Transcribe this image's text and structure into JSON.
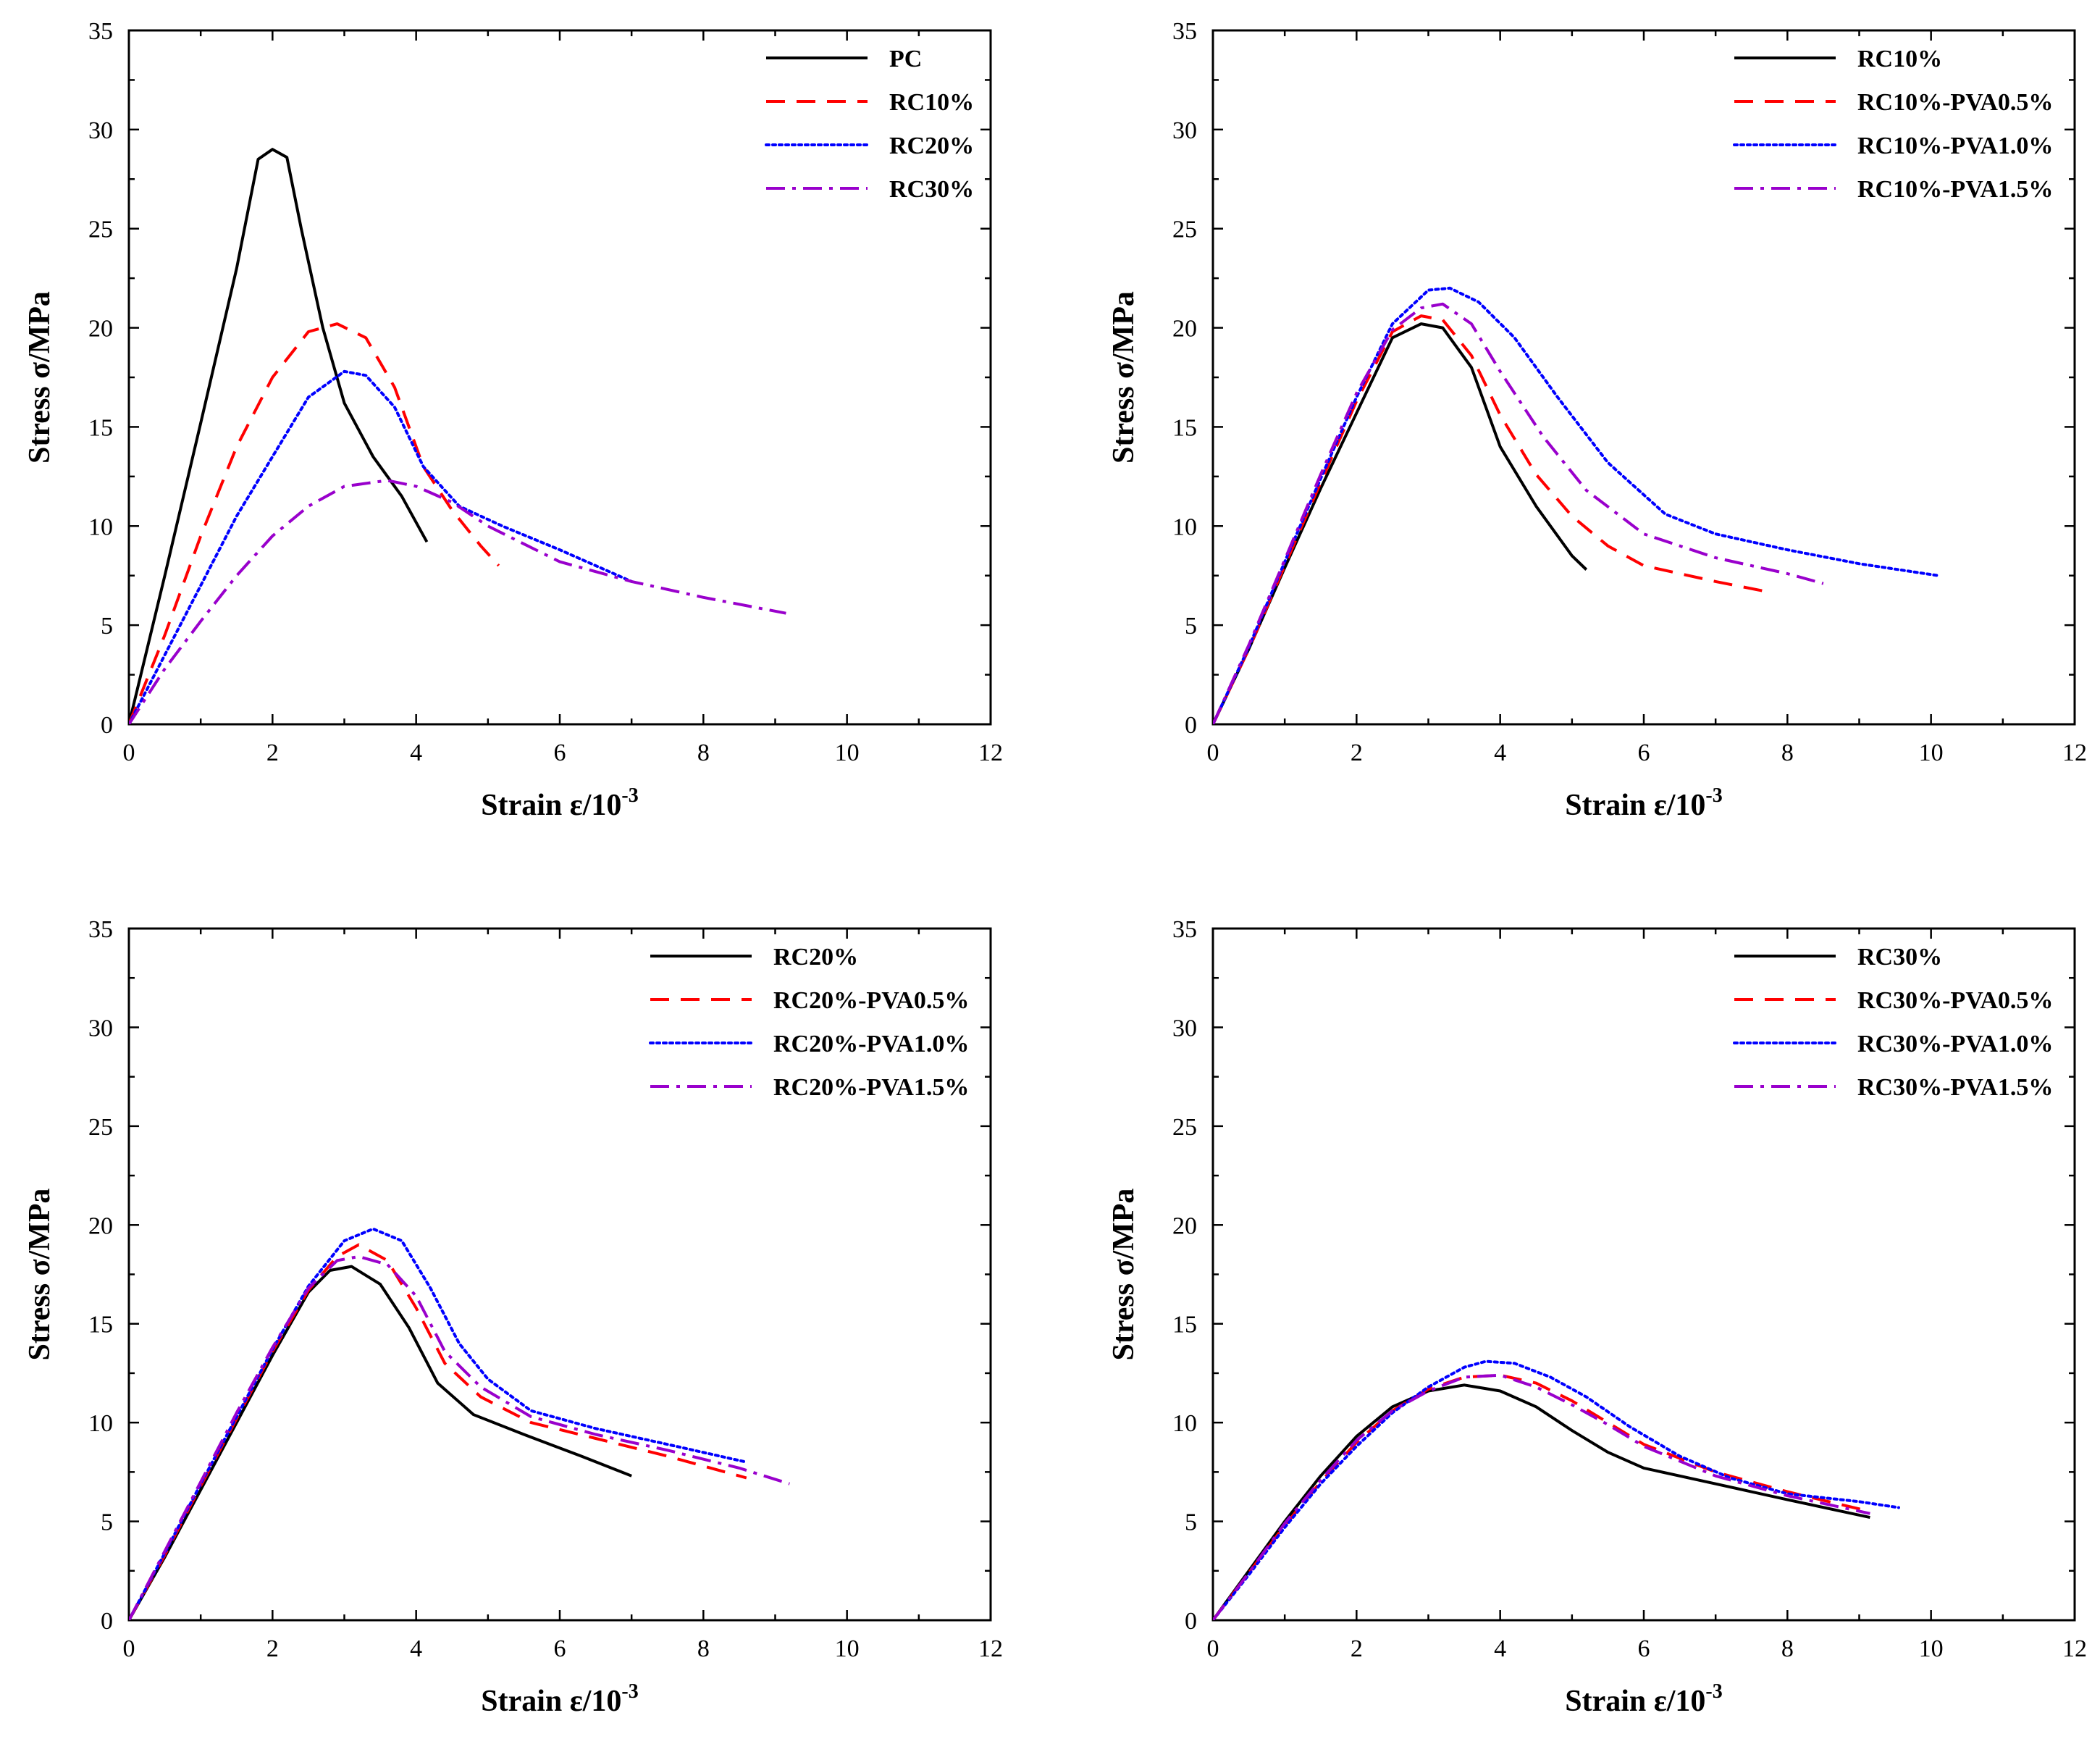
{
  "colors": {
    "black": "#000000",
    "red": "#ff0000",
    "blue": "#0000ff",
    "purple": "#9900cc"
  },
  "chart_data": [
    {
      "type": "line",
      "xlabel": "Strain ε/10",
      "xlabel_sup": "-3",
      "ylabel": "Stress σ/MPa",
      "xlim": [
        0,
        12
      ],
      "ylim": [
        0,
        35
      ],
      "xticks": [
        0,
        2,
        4,
        6,
        8,
        10,
        12
      ],
      "yticks": [
        0,
        5,
        10,
        15,
        20,
        25,
        30,
        35
      ],
      "legend_position": "top-right",
      "series": [
        {
          "name": "PC",
          "color": "#000000",
          "style": "solid",
          "x": [
            0,
            0.5,
            1.0,
            1.5,
            1.8,
            2.0,
            2.2,
            2.4,
            2.7,
            3.0,
            3.4,
            3.8,
            4.15
          ],
          "y": [
            0,
            7.5,
            15.2,
            23,
            28.5,
            29,
            28.6,
            25,
            20,
            16.2,
            13.5,
            11.5,
            9.2
          ]
        },
        {
          "name": "RC10%",
          "color": "#ff0000",
          "style": "dashed",
          "x": [
            0,
            0.5,
            1.0,
            1.5,
            2.0,
            2.5,
            2.9,
            3.3,
            3.7,
            4.1,
            4.5,
            4.9,
            5.15
          ],
          "y": [
            0,
            4.5,
            9.5,
            14,
            17.5,
            19.8,
            20.2,
            19.5,
            17,
            13,
            10.8,
            9,
            8
          ]
        },
        {
          "name": "RC20%",
          "color": "#0000ff",
          "style": "dotted",
          "x": [
            0,
            0.5,
            1.0,
            1.5,
            2.0,
            2.5,
            3.0,
            3.3,
            3.7,
            4.1,
            4.6,
            5.2,
            6.0,
            7.0
          ],
          "y": [
            0,
            3.5,
            7,
            10.5,
            13.5,
            16.5,
            17.8,
            17.6,
            16,
            13,
            11,
            10,
            8.8,
            7.2
          ]
        },
        {
          "name": "RC30%",
          "color": "#9900cc",
          "style": "dashdot",
          "x": [
            0,
            0.5,
            1.0,
            1.5,
            2.0,
            2.5,
            3.0,
            3.6,
            4.0,
            4.5,
            5.0,
            6.0,
            7.0,
            8.0,
            9.15
          ],
          "y": [
            0,
            2.8,
            5.2,
            7.5,
            9.5,
            11,
            12,
            12.3,
            12,
            11.2,
            10,
            8.2,
            7.2,
            6.4,
            5.6
          ]
        }
      ]
    },
    {
      "type": "line",
      "xlabel": "Strain ε/10",
      "xlabel_sup": "-3",
      "ylabel": "Stress σ/MPa",
      "xlim": [
        0,
        12
      ],
      "ylim": [
        0,
        35
      ],
      "xticks": [
        0,
        2,
        4,
        6,
        8,
        10,
        12
      ],
      "yticks": [
        0,
        5,
        10,
        15,
        20,
        25,
        30,
        35
      ],
      "legend_position": "top-right",
      "series": [
        {
          "name": "RC10%",
          "color": "#000000",
          "style": "solid",
          "x": [
            0,
            0.5,
            1.0,
            1.5,
            2.0,
            2.5,
            2.9,
            3.2,
            3.6,
            4.0,
            4.5,
            5.0,
            5.2
          ],
          "y": [
            0,
            3.8,
            7.9,
            11.9,
            15.7,
            19.5,
            20.2,
            20,
            18,
            14,
            11,
            8.5,
            7.8
          ]
        },
        {
          "name": "RC10%-PVA0.5%",
          "color": "#ff0000",
          "style": "dashed",
          "x": [
            0,
            0.5,
            1.0,
            1.5,
            2.0,
            2.5,
            2.9,
            3.2,
            3.6,
            4.0,
            4.5,
            5.0,
            5.5,
            6.0,
            7.0,
            7.7
          ],
          "y": [
            0,
            3.8,
            8,
            12.2,
            16.3,
            19.8,
            20.6,
            20.4,
            18.6,
            15.6,
            12.6,
            10.5,
            9,
            8,
            7.2,
            6.7
          ]
        },
        {
          "name": "RC10%-PVA1.0%",
          "color": "#0000ff",
          "style": "dotted",
          "x": [
            0,
            0.5,
            1.0,
            1.5,
            2.0,
            2.5,
            3.0,
            3.3,
            3.7,
            4.2,
            4.8,
            5.5,
            6.3,
            7.0,
            8.0,
            9.0,
            10.1
          ],
          "y": [
            0,
            3.9,
            8.2,
            12.4,
            16.5,
            20.2,
            21.9,
            22,
            21.3,
            19.5,
            16.5,
            13.2,
            10.6,
            9.6,
            8.8,
            8.1,
            7.5
          ]
        },
        {
          "name": "RC10%-PVA1.5%",
          "color": "#9900cc",
          "style": "dashdot",
          "x": [
            0,
            0.5,
            1.0,
            1.5,
            2.0,
            2.5,
            2.9,
            3.2,
            3.6,
            4.0,
            4.6,
            5.2,
            6.0,
            7.0,
            8.0,
            8.5
          ],
          "y": [
            0,
            4,
            8.3,
            12.6,
            16.7,
            19.9,
            21,
            21.2,
            20.2,
            17.8,
            14.5,
            11.8,
            9.6,
            8.4,
            7.6,
            7.1
          ]
        }
      ]
    },
    {
      "type": "line",
      "xlabel": "Strain ε/10",
      "xlabel_sup": "-3",
      "ylabel": "Stress σ/MPa",
      "xlim": [
        0,
        12
      ],
      "ylim": [
        0,
        35
      ],
      "xticks": [
        0,
        2,
        4,
        6,
        8,
        10,
        12
      ],
      "yticks": [
        0,
        5,
        10,
        15,
        20,
        25,
        30,
        35
      ],
      "legend_position": "top-right",
      "series": [
        {
          "name": "RC20%",
          "color": "#000000",
          "style": "solid",
          "x": [
            0,
            0.5,
            1.0,
            1.5,
            2.0,
            2.5,
            2.8,
            3.1,
            3.5,
            3.9,
            4.3,
            4.8,
            5.5,
            6.3,
            7.0
          ],
          "y": [
            0,
            3.2,
            6.6,
            10,
            13.4,
            16.6,
            17.7,
            17.9,
            17,
            14.8,
            12,
            10.4,
            9.4,
            8.3,
            7.3
          ]
        },
        {
          "name": "RC20%-PVA0.5%",
          "color": "#ff0000",
          "style": "dashed",
          "x": [
            0,
            0.5,
            1.0,
            1.5,
            2.0,
            2.5,
            2.9,
            3.2,
            3.6,
            4.0,
            4.4,
            4.9,
            5.6,
            6.5,
            7.5,
            8.6
          ],
          "y": [
            0,
            3.3,
            6.8,
            10.2,
            13.6,
            16.7,
            18.4,
            19,
            18.2,
            15.8,
            13,
            11.3,
            10,
            9.2,
            8.3,
            7.2
          ]
        },
        {
          "name": "RC20%-PVA1.0%",
          "color": "#0000ff",
          "style": "dotted",
          "x": [
            0,
            0.5,
            1.0,
            1.5,
            2.0,
            2.5,
            3.0,
            3.4,
            3.8,
            4.2,
            4.6,
            5.0,
            5.6,
            6.5,
            7.5,
            8.6
          ],
          "y": [
            0,
            3.4,
            6.9,
            10.3,
            13.7,
            16.9,
            19.2,
            19.8,
            19.2,
            16.8,
            14,
            12.2,
            10.6,
            9.7,
            8.9,
            8
          ]
        },
        {
          "name": "RC20%-PVA1.5%",
          "color": "#9900cc",
          "style": "dashdot",
          "x": [
            0,
            0.5,
            1.0,
            1.5,
            2.0,
            2.5,
            2.9,
            3.2,
            3.6,
            4.0,
            4.4,
            4.9,
            5.6,
            6.5,
            7.5,
            8.5,
            9.2
          ],
          "y": [
            0,
            3.5,
            7,
            10.5,
            13.8,
            16.8,
            18.2,
            18.4,
            18,
            16.4,
            13.6,
            11.8,
            10.3,
            9.4,
            8.6,
            7.7,
            6.9
          ]
        }
      ]
    },
    {
      "type": "line",
      "xlabel": "Strain ε/10",
      "xlabel_sup": "-3",
      "ylabel": "Stress σ/MPa",
      "xlim": [
        0,
        12
      ],
      "ylim": [
        0,
        35
      ],
      "xticks": [
        0,
        2,
        4,
        6,
        8,
        10,
        12
      ],
      "yticks": [
        0,
        5,
        10,
        15,
        20,
        25,
        30,
        35
      ],
      "legend_position": "top-right",
      "series": [
        {
          "name": "RC30%",
          "color": "#000000",
          "style": "solid",
          "x": [
            0,
            0.5,
            1.0,
            1.5,
            2.0,
            2.5,
            3.0,
            3.5,
            4.0,
            4.5,
            5.0,
            5.5,
            6.0,
            7.0,
            8.0,
            9.15
          ],
          "y": [
            0,
            2.5,
            5,
            7.3,
            9.3,
            10.8,
            11.6,
            11.9,
            11.6,
            10.8,
            9.6,
            8.5,
            7.7,
            6.9,
            6.1,
            5.2
          ]
        },
        {
          "name": "RC30%-PVA0.5%",
          "color": "#ff0000",
          "style": "dashed",
          "x": [
            0,
            0.5,
            1.0,
            1.5,
            2.0,
            2.5,
            3.0,
            3.5,
            4.0,
            4.5,
            5.0,
            5.5,
            6.0,
            7.0,
            8.0,
            9.15
          ],
          "y": [
            0,
            2.4,
            4.8,
            7,
            9,
            10.6,
            11.7,
            12.3,
            12.4,
            12,
            11.1,
            10,
            8.9,
            7.5,
            6.5,
            5.5
          ]
        },
        {
          "name": "RC30%-PVA1.0%",
          "color": "#0000ff",
          "style": "dotted",
          "x": [
            0,
            0.5,
            1.0,
            1.5,
            2.0,
            2.5,
            3.0,
            3.5,
            3.8,
            4.2,
            4.7,
            5.2,
            5.8,
            6.5,
            7.2,
            8.0,
            9.0,
            9.55
          ],
          "y": [
            0,
            2.3,
            4.7,
            6.9,
            8.8,
            10.5,
            11.8,
            12.8,
            13.1,
            13,
            12.3,
            11.3,
            9.8,
            8.3,
            7.2,
            6.4,
            6,
            5.7
          ]
        },
        {
          "name": "RC30%-PVA1.5%",
          "color": "#9900cc",
          "style": "dashdot",
          "x": [
            0,
            0.5,
            1.0,
            1.5,
            2.0,
            2.5,
            3.0,
            3.5,
            4.0,
            4.5,
            5.0,
            5.5,
            6.0,
            7.0,
            8.0,
            9.15
          ],
          "y": [
            0,
            2.4,
            4.9,
            7.1,
            9.1,
            10.6,
            11.6,
            12.3,
            12.4,
            11.8,
            10.9,
            9.9,
            8.8,
            7.3,
            6.3,
            5.4
          ]
        }
      ]
    }
  ]
}
